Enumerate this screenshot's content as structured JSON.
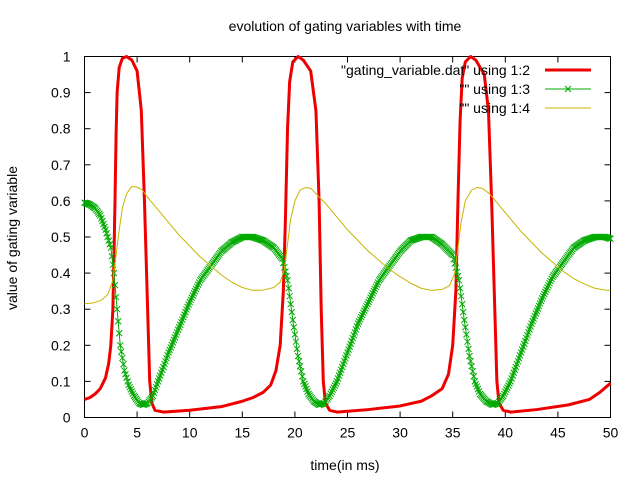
{
  "chart_data": {
    "type": "line",
    "title": "evolution of gating variables with time",
    "xlabel": "time(in ms)",
    "ylabel": "value of gating variable",
    "xlim": [
      0,
      50
    ],
    "ylim": [
      0,
      1
    ],
    "x_ticks": [
      "0",
      "5",
      "10",
      "15",
      "20",
      "25",
      "30",
      "35",
      "40",
      "45",
      "50"
    ],
    "y_ticks": [
      "0",
      "0.1",
      "0.2",
      "0.3",
      "0.4",
      "0.5",
      "0.6",
      "0.7",
      "0.8",
      "0.9",
      "1"
    ],
    "grid": false,
    "legend_position": "top-right",
    "series": [
      {
        "name": "\"gating_variable.dat\" using 1:2",
        "color": "#ee0000",
        "style": "line",
        "points": [
          [
            0,
            0.05
          ],
          [
            0.5,
            0.055
          ],
          [
            1,
            0.065
          ],
          [
            1.5,
            0.08
          ],
          [
            2,
            0.11
          ],
          [
            2.3,
            0.15
          ],
          [
            2.5,
            0.2
          ],
          [
            2.7,
            0.3
          ],
          [
            2.8,
            0.45
          ],
          [
            2.9,
            0.6
          ],
          [
            3,
            0.78
          ],
          [
            3.1,
            0.9
          ],
          [
            3.3,
            0.97
          ],
          [
            3.6,
            0.995
          ],
          [
            4,
            1.0
          ],
          [
            4.5,
            0.99
          ],
          [
            5,
            0.96
          ],
          [
            5.4,
            0.85
          ],
          [
            5.7,
            0.6
          ],
          [
            6,
            0.3
          ],
          [
            6.2,
            0.1
          ],
          [
            6.4,
            0.04
          ],
          [
            6.7,
            0.02
          ],
          [
            7.5,
            0.015
          ],
          [
            10,
            0.02
          ],
          [
            13,
            0.03
          ],
          [
            15,
            0.045
          ],
          [
            16,
            0.055
          ],
          [
            17,
            0.07
          ],
          [
            17.7,
            0.09
          ],
          [
            18.2,
            0.13
          ],
          [
            18.6,
            0.2
          ],
          [
            18.9,
            0.35
          ],
          [
            19.1,
            0.55
          ],
          [
            19.3,
            0.8
          ],
          [
            19.5,
            0.93
          ],
          [
            19.8,
            0.985
          ],
          [
            20.3,
            1.0
          ],
          [
            20.8,
            0.99
          ],
          [
            21.5,
            0.96
          ],
          [
            22,
            0.85
          ],
          [
            22.3,
            0.6
          ],
          [
            22.5,
            0.3
          ],
          [
            22.7,
            0.1
          ],
          [
            22.9,
            0.04
          ],
          [
            23.3,
            0.02
          ],
          [
            24,
            0.015
          ],
          [
            27,
            0.022
          ],
          [
            30,
            0.032
          ],
          [
            32,
            0.045
          ],
          [
            33,
            0.06
          ],
          [
            34,
            0.08
          ],
          [
            34.6,
            0.12
          ],
          [
            35,
            0.2
          ],
          [
            35.3,
            0.35
          ],
          [
            35.5,
            0.6
          ],
          [
            35.7,
            0.82
          ],
          [
            35.9,
            0.94
          ],
          [
            36.2,
            0.985
          ],
          [
            36.7,
            1.0
          ],
          [
            37.2,
            0.99
          ],
          [
            38,
            0.95
          ],
          [
            38.4,
            0.85
          ],
          [
            38.7,
            0.6
          ],
          [
            39,
            0.3
          ],
          [
            39.2,
            0.1
          ],
          [
            39.4,
            0.04
          ],
          [
            39.8,
            0.02
          ],
          [
            40.5,
            0.015
          ],
          [
            43,
            0.022
          ],
          [
            46,
            0.035
          ],
          [
            48,
            0.05
          ],
          [
            49,
            0.07
          ],
          [
            50,
            0.095
          ]
        ]
      },
      {
        "name": "\"\" using 1:3",
        "color": "#00aa00",
        "style": "linespoints",
        "points": [
          [
            0,
            0.595
          ],
          [
            0.5,
            0.59
          ],
          [
            1,
            0.58
          ],
          [
            1.5,
            0.56
          ],
          [
            2,
            0.52
          ],
          [
            2.5,
            0.47
          ],
          [
            2.8,
            0.4
          ],
          [
            3.1,
            0.3
          ],
          [
            3.4,
            0.2
          ],
          [
            3.8,
            0.13
          ],
          [
            4.2,
            0.09
          ],
          [
            4.7,
            0.06
          ],
          [
            5.2,
            0.04
          ],
          [
            5.6,
            0.035
          ],
          [
            6,
            0.04
          ],
          [
            6.5,
            0.06
          ],
          [
            7,
            0.1
          ],
          [
            8,
            0.18
          ],
          [
            9,
            0.25
          ],
          [
            10,
            0.32
          ],
          [
            11,
            0.38
          ],
          [
            12,
            0.42
          ],
          [
            13,
            0.46
          ],
          [
            14,
            0.485
          ],
          [
            15,
            0.5
          ],
          [
            16,
            0.5
          ],
          [
            17,
            0.49
          ],
          [
            18,
            0.47
          ],
          [
            18.8,
            0.44
          ],
          [
            19.3,
            0.38
          ],
          [
            19.8,
            0.27
          ],
          [
            20.3,
            0.17
          ],
          [
            20.8,
            0.1
          ],
          [
            21.3,
            0.065
          ],
          [
            21.8,
            0.045
          ],
          [
            22.3,
            0.035
          ],
          [
            22.8,
            0.04
          ],
          [
            23.3,
            0.06
          ],
          [
            24,
            0.1
          ],
          [
            25,
            0.18
          ],
          [
            26,
            0.26
          ],
          [
            27,
            0.32
          ],
          [
            28,
            0.38
          ],
          [
            29,
            0.42
          ],
          [
            30,
            0.46
          ],
          [
            31,
            0.49
          ],
          [
            32,
            0.5
          ],
          [
            33,
            0.5
          ],
          [
            34,
            0.48
          ],
          [
            35,
            0.45
          ],
          [
            35.6,
            0.38
          ],
          [
            36.1,
            0.27
          ],
          [
            36.6,
            0.17
          ],
          [
            37.1,
            0.1
          ],
          [
            37.6,
            0.065
          ],
          [
            38.2,
            0.045
          ],
          [
            38.8,
            0.035
          ],
          [
            39.3,
            0.04
          ],
          [
            39.8,
            0.06
          ],
          [
            40.5,
            0.1
          ],
          [
            41.5,
            0.18
          ],
          [
            42.5,
            0.26
          ],
          [
            43.5,
            0.33
          ],
          [
            44.5,
            0.39
          ],
          [
            45.5,
            0.43
          ],
          [
            46.5,
            0.47
          ],
          [
            47.5,
            0.49
          ],
          [
            48.5,
            0.5
          ],
          [
            49.5,
            0.5
          ],
          [
            50,
            0.495
          ]
        ]
      },
      {
        "name": "\"\" using 1:4",
        "color": "#c8b400",
        "style": "line",
        "points": [
          [
            0,
            0.315
          ],
          [
            0.8,
            0.317
          ],
          [
            1.6,
            0.325
          ],
          [
            2.2,
            0.34
          ],
          [
            2.7,
            0.38
          ],
          [
            3,
            0.45
          ],
          [
            3.3,
            0.52
          ],
          [
            3.6,
            0.58
          ],
          [
            4,
            0.62
          ],
          [
            4.5,
            0.64
          ],
          [
            5,
            0.638
          ],
          [
            5.5,
            0.63
          ],
          [
            6,
            0.61
          ],
          [
            7,
            0.575
          ],
          [
            8,
            0.54
          ],
          [
            9,
            0.505
          ],
          [
            10,
            0.475
          ],
          [
            11,
            0.445
          ],
          [
            12,
            0.42
          ],
          [
            13,
            0.395
          ],
          [
            14,
            0.375
          ],
          [
            15,
            0.36
          ],
          [
            16,
            0.352
          ],
          [
            17,
            0.353
          ],
          [
            18,
            0.36
          ],
          [
            18.6,
            0.375
          ],
          [
            19,
            0.41
          ],
          [
            19.3,
            0.48
          ],
          [
            19.6,
            0.55
          ],
          [
            20,
            0.6
          ],
          [
            20.5,
            0.63
          ],
          [
            21,
            0.637
          ],
          [
            21.5,
            0.635
          ],
          [
            22,
            0.62
          ],
          [
            23,
            0.59
          ],
          [
            24,
            0.555
          ],
          [
            25,
            0.52
          ],
          [
            26,
            0.49
          ],
          [
            27,
            0.46
          ],
          [
            28,
            0.435
          ],
          [
            29,
            0.41
          ],
          [
            30,
            0.39
          ],
          [
            31,
            0.372
          ],
          [
            32,
            0.358
          ],
          [
            33,
            0.352
          ],
          [
            34,
            0.355
          ],
          [
            34.7,
            0.365
          ],
          [
            35.2,
            0.4
          ],
          [
            35.5,
            0.47
          ],
          [
            35.8,
            0.54
          ],
          [
            36.2,
            0.6
          ],
          [
            36.8,
            0.63
          ],
          [
            37.3,
            0.637
          ],
          [
            37.8,
            0.635
          ],
          [
            38.5,
            0.62
          ],
          [
            39.5,
            0.585
          ],
          [
            40.5,
            0.55
          ],
          [
            41.5,
            0.515
          ],
          [
            42.5,
            0.485
          ],
          [
            43.5,
            0.455
          ],
          [
            44.5,
            0.43
          ],
          [
            45.5,
            0.405
          ],
          [
            46.5,
            0.385
          ],
          [
            47.5,
            0.37
          ],
          [
            48.5,
            0.358
          ],
          [
            49.5,
            0.353
          ],
          [
            50,
            0.352
          ]
        ]
      }
    ]
  }
}
